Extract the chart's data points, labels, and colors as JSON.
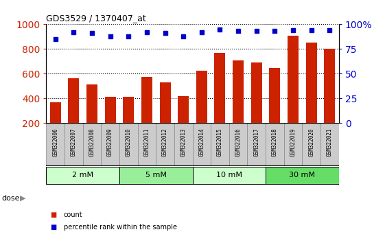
{
  "title": "GDS3529 / 1370407_at",
  "samples": [
    "GSM322006",
    "GSM322007",
    "GSM322008",
    "GSM322009",
    "GSM322010",
    "GSM322011",
    "GSM322012",
    "GSM322013",
    "GSM322014",
    "GSM322015",
    "GSM322016",
    "GSM322017",
    "GSM322018",
    "GSM322019",
    "GSM322020",
    "GSM322021"
  ],
  "bar_values": [
    370,
    560,
    510,
    415,
    415,
    572,
    530,
    420,
    625,
    770,
    710,
    690,
    645,
    910,
    850,
    800
  ],
  "percentile_values": [
    85,
    92,
    91,
    88,
    88,
    92,
    91,
    88,
    92,
    95,
    93,
    93,
    93,
    94,
    94,
    94
  ],
  "bar_color": "#cc2200",
  "dot_color": "#0000cc",
  "ylim_left": [
    200,
    1000
  ],
  "ylim_right": [
    0,
    100
  ],
  "yticks_left": [
    200,
    400,
    600,
    800,
    1000
  ],
  "yticks_right": [
    0,
    25,
    50,
    75,
    100
  ],
  "yticklabels_right": [
    "0",
    "25",
    "50",
    "75",
    "100%"
  ],
  "dose_groups": [
    {
      "label": "2 mM",
      "start": 0,
      "end": 3,
      "color": "#ccffcc"
    },
    {
      "label": "5 mM",
      "start": 4,
      "end": 7,
      "color": "#99ee99"
    },
    {
      "label": "10 mM",
      "start": 8,
      "end": 11,
      "color": "#ccffcc"
    },
    {
      "label": "30 mM",
      "start": 12,
      "end": 15,
      "color": "#66dd66"
    }
  ],
  "dose_label": "dose",
  "legend_count_label": "count",
  "legend_pct_label": "percentile rank within the sample",
  "bar_bottom": 200,
  "label_bg_color": "#cccccc",
  "separator_color": "#000000",
  "bar_border_color": "#888888"
}
